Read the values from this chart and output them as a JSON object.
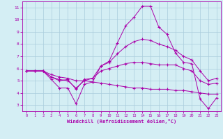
{
  "xlabel": "Windchill (Refroidissement éolien,°C)",
  "bg_color": "#d4eef4",
  "line_color": "#aa00aa",
  "grid_color": "#aaccdd",
  "xlim": [
    -0.5,
    23.5
  ],
  "ylim": [
    2.5,
    11.5
  ],
  "xticks": [
    0,
    1,
    2,
    3,
    4,
    5,
    6,
    7,
    8,
    9,
    10,
    11,
    12,
    13,
    14,
    15,
    16,
    17,
    18,
    19,
    20,
    21,
    22,
    23
  ],
  "yticks": [
    3,
    4,
    5,
    6,
    7,
    8,
    9,
    10,
    11
  ],
  "line1_x": [
    0,
    1,
    2,
    3,
    4,
    5,
    6,
    7,
    8,
    9,
    10,
    11,
    12,
    13,
    14,
    15,
    16,
    17,
    18,
    19,
    20,
    21,
    22,
    23
  ],
  "line1_y": [
    5.8,
    5.8,
    5.8,
    5.1,
    4.4,
    4.4,
    3.1,
    4.7,
    4.9,
    6.2,
    6.6,
    8.1,
    9.5,
    10.2,
    11.1,
    11.1,
    9.4,
    8.8,
    7.3,
    6.5,
    6.4,
    3.5,
    2.7,
    3.6
  ],
  "line2_x": [
    0,
    1,
    2,
    3,
    4,
    5,
    6,
    7,
    8,
    9,
    10,
    11,
    12,
    13,
    14,
    15,
    16,
    17,
    18,
    19,
    20,
    21,
    22,
    23
  ],
  "line2_y": [
    5.8,
    5.8,
    5.8,
    5.3,
    5.1,
    5.0,
    4.4,
    5.0,
    5.2,
    6.2,
    6.5,
    7.2,
    7.8,
    8.2,
    8.4,
    8.3,
    8.0,
    7.8,
    7.5,
    7.0,
    6.7,
    5.8,
    5.0,
    5.2
  ],
  "line3_x": [
    0,
    1,
    2,
    3,
    4,
    5,
    6,
    7,
    8,
    9,
    10,
    11,
    12,
    13,
    14,
    15,
    16,
    17,
    18,
    19,
    20,
    21,
    22,
    23
  ],
  "line3_y": [
    5.8,
    5.8,
    5.8,
    5.3,
    5.0,
    5.1,
    4.3,
    5.1,
    5.2,
    5.8,
    6.0,
    6.2,
    6.4,
    6.5,
    6.5,
    6.4,
    6.3,
    6.3,
    6.3,
    6.0,
    5.8,
    5.0,
    4.7,
    4.8
  ],
  "line4_x": [
    0,
    1,
    2,
    3,
    4,
    5,
    6,
    7,
    8,
    9,
    10,
    11,
    12,
    13,
    14,
    15,
    16,
    17,
    18,
    19,
    20,
    21,
    22,
    23
  ],
  "line4_y": [
    5.8,
    5.8,
    5.8,
    5.5,
    5.3,
    5.2,
    5.0,
    5.0,
    4.9,
    4.8,
    4.7,
    4.6,
    4.5,
    4.4,
    4.4,
    4.3,
    4.3,
    4.3,
    4.2,
    4.2,
    4.1,
    4.0,
    3.9,
    3.9
  ]
}
